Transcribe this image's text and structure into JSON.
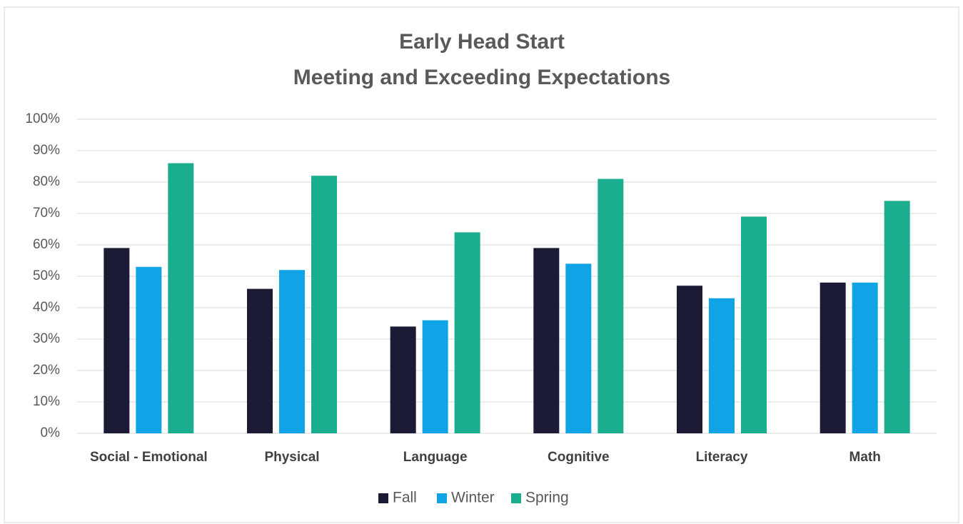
{
  "chart_data": {
    "type": "bar",
    "title": "Early Head Start",
    "subtitle": "Meeting and Exceeding Expectations",
    "categories": [
      "Social - Emotional",
      "Physical",
      "Language",
      "Cognitive",
      "Literacy",
      "Math"
    ],
    "series": [
      {
        "name": "Fall",
        "color": "#1c1b35",
        "values": [
          59,
          46,
          34,
          59,
          47,
          48
        ]
      },
      {
        "name": "Winter",
        "color": "#10a3e6",
        "values": [
          53,
          52,
          36,
          54,
          43,
          48
        ]
      },
      {
        "name": "Spring",
        "color": "#1aae8e",
        "values": [
          86,
          82,
          64,
          81,
          69,
          74
        ]
      }
    ],
    "ylim": [
      0,
      100
    ],
    "yticks": [
      {
        "value": 0,
        "label": "0%"
      },
      {
        "value": 10,
        "label": "10%"
      },
      {
        "value": 20,
        "label": "20%"
      },
      {
        "value": 30,
        "label": "30%"
      },
      {
        "value": 40,
        "label": "40%"
      },
      {
        "value": 50,
        "label": "50%"
      },
      {
        "value": 60,
        "label": "60%"
      },
      {
        "value": 70,
        "label": "70%"
      },
      {
        "value": 80,
        "label": "80%"
      },
      {
        "value": 90,
        "label": "90%"
      },
      {
        "value": 100,
        "label": "100%"
      }
    ],
    "grid": true,
    "legend": "bottom"
  }
}
